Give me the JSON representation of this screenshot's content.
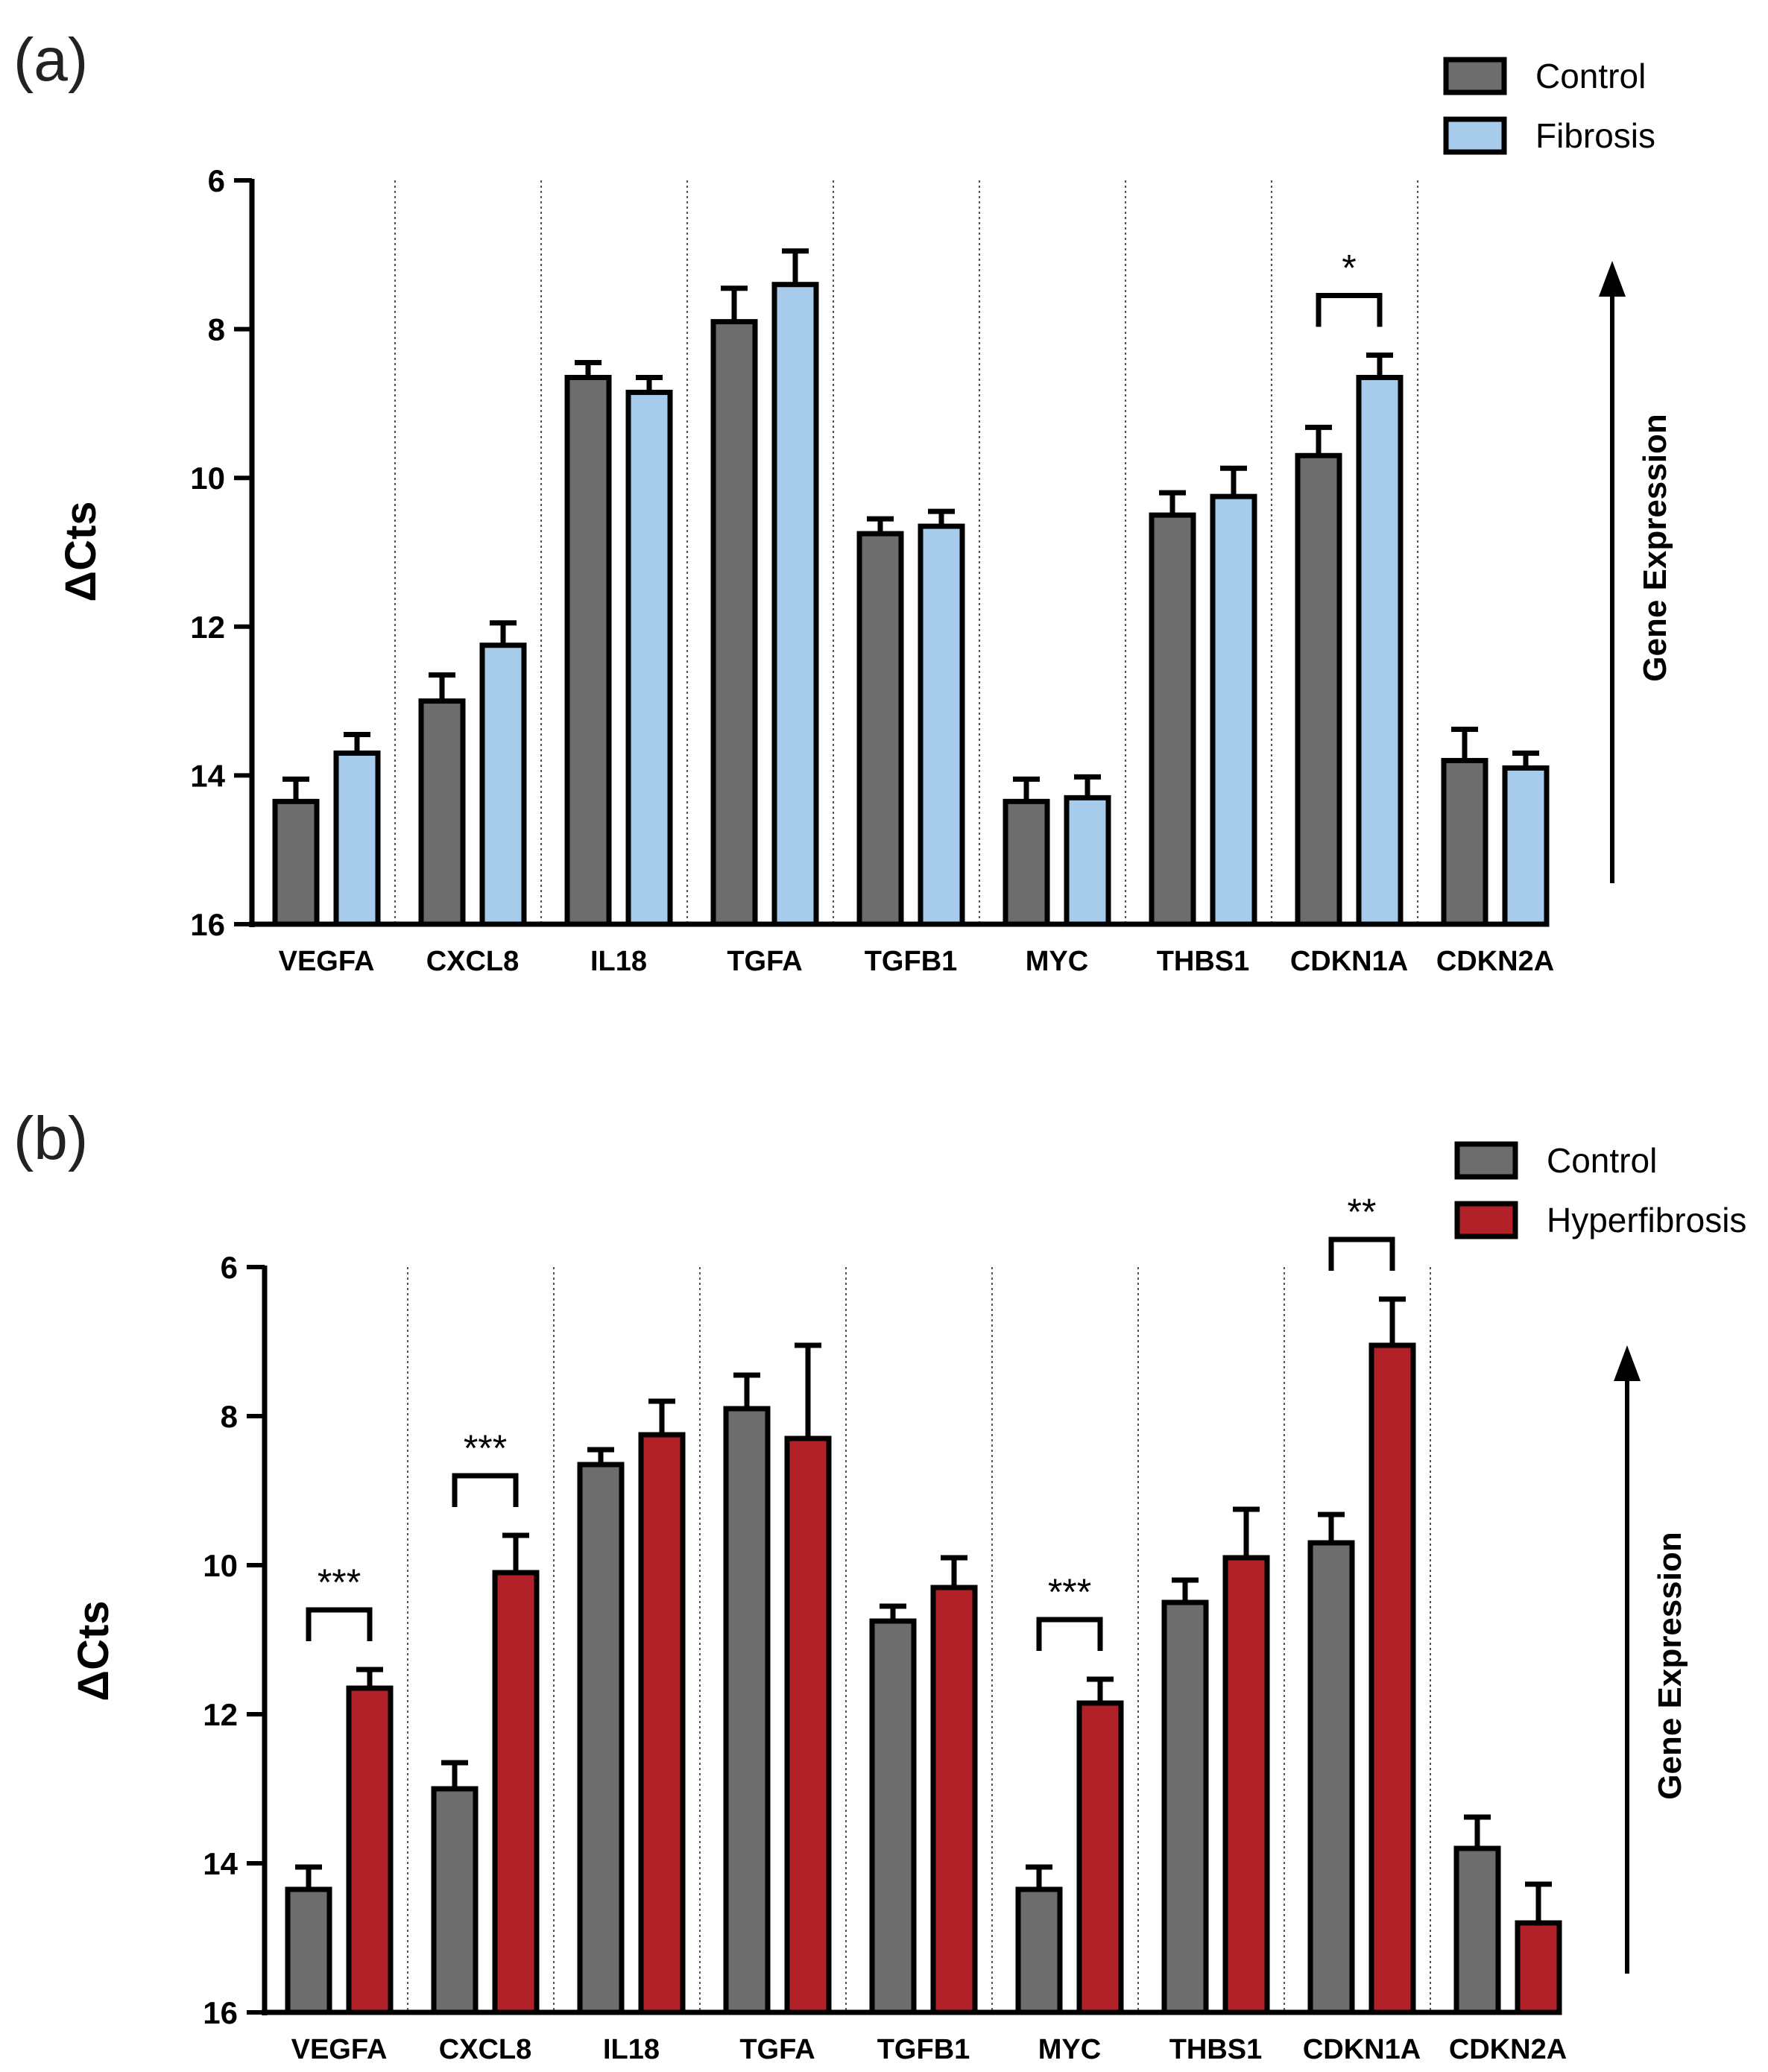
{
  "chart_data": [
    {
      "panel": "(a)",
      "type": "bar",
      "ylabel": "ΔCts",
      "ylim": [
        16,
        6
      ],
      "yticks": [
        6,
        8,
        10,
        12,
        14,
        16
      ],
      "inverted_y": true,
      "categories": [
        "VEGFA",
        "CXCL8",
        "IL18",
        "TGFA",
        "TGFB1",
        "MYC",
        "THBS1",
        "CDKN1A",
        "CDKN2A"
      ],
      "series": [
        {
          "name": "Control",
          "color": "#6d6d6d",
          "values": [
            14.35,
            13.0,
            8.65,
            7.9,
            10.75,
            14.35,
            10.5,
            9.7,
            13.8
          ],
          "errors": [
            0.3,
            0.35,
            0.2,
            0.45,
            0.2,
            0.3,
            0.3,
            0.38,
            0.42
          ]
        },
        {
          "name": "Fibrosis",
          "color": "#a7cbeb",
          "values": [
            13.7,
            12.25,
            8.85,
            7.4,
            10.65,
            14.3,
            10.25,
            8.65,
            13.9
          ],
          "errors": [
            0.25,
            0.3,
            0.2,
            0.45,
            0.2,
            0.28,
            0.38,
            0.3,
            0.2
          ]
        }
      ],
      "significance": [
        {
          "category": "CDKN1A",
          "label": "*"
        }
      ],
      "annotation": "Gene Expression"
    },
    {
      "panel": "(b)",
      "type": "bar",
      "ylabel": "ΔCts",
      "ylim": [
        16,
        6
      ],
      "yticks": [
        6,
        8,
        10,
        12,
        14,
        16
      ],
      "inverted_y": true,
      "categories": [
        "VEGFA",
        "CXCL8",
        "IL18",
        "TGFA",
        "TGFB1",
        "MYC",
        "THBS1",
        "CDKN1A",
        "CDKN2A"
      ],
      "series": [
        {
          "name": "Control",
          "color": "#6d6d6d",
          "values": [
            14.35,
            13.0,
            8.65,
            7.9,
            10.75,
            14.35,
            10.5,
            9.7,
            13.8
          ],
          "errors": [
            0.3,
            0.35,
            0.2,
            0.45,
            0.2,
            0.3,
            0.3,
            0.38,
            0.42
          ]
        },
        {
          "name": "Hyperfibrosis",
          "color": "#b22028",
          "values": [
            11.65,
            10.1,
            8.25,
            8.3,
            10.3,
            11.85,
            9.9,
            7.05,
            14.8
          ],
          "errors": [
            0.25,
            0.5,
            0.45,
            1.25,
            0.4,
            0.32,
            0.65,
            0.62,
            0.52
          ]
        }
      ],
      "significance": [
        {
          "category": "VEGFA",
          "label": "***"
        },
        {
          "category": "CXCL8",
          "label": "***"
        },
        {
          "category": "MYC",
          "label": "***"
        },
        {
          "category": "CDKN1A",
          "label": "**"
        }
      ],
      "annotation": "Gene Expression"
    }
  ]
}
